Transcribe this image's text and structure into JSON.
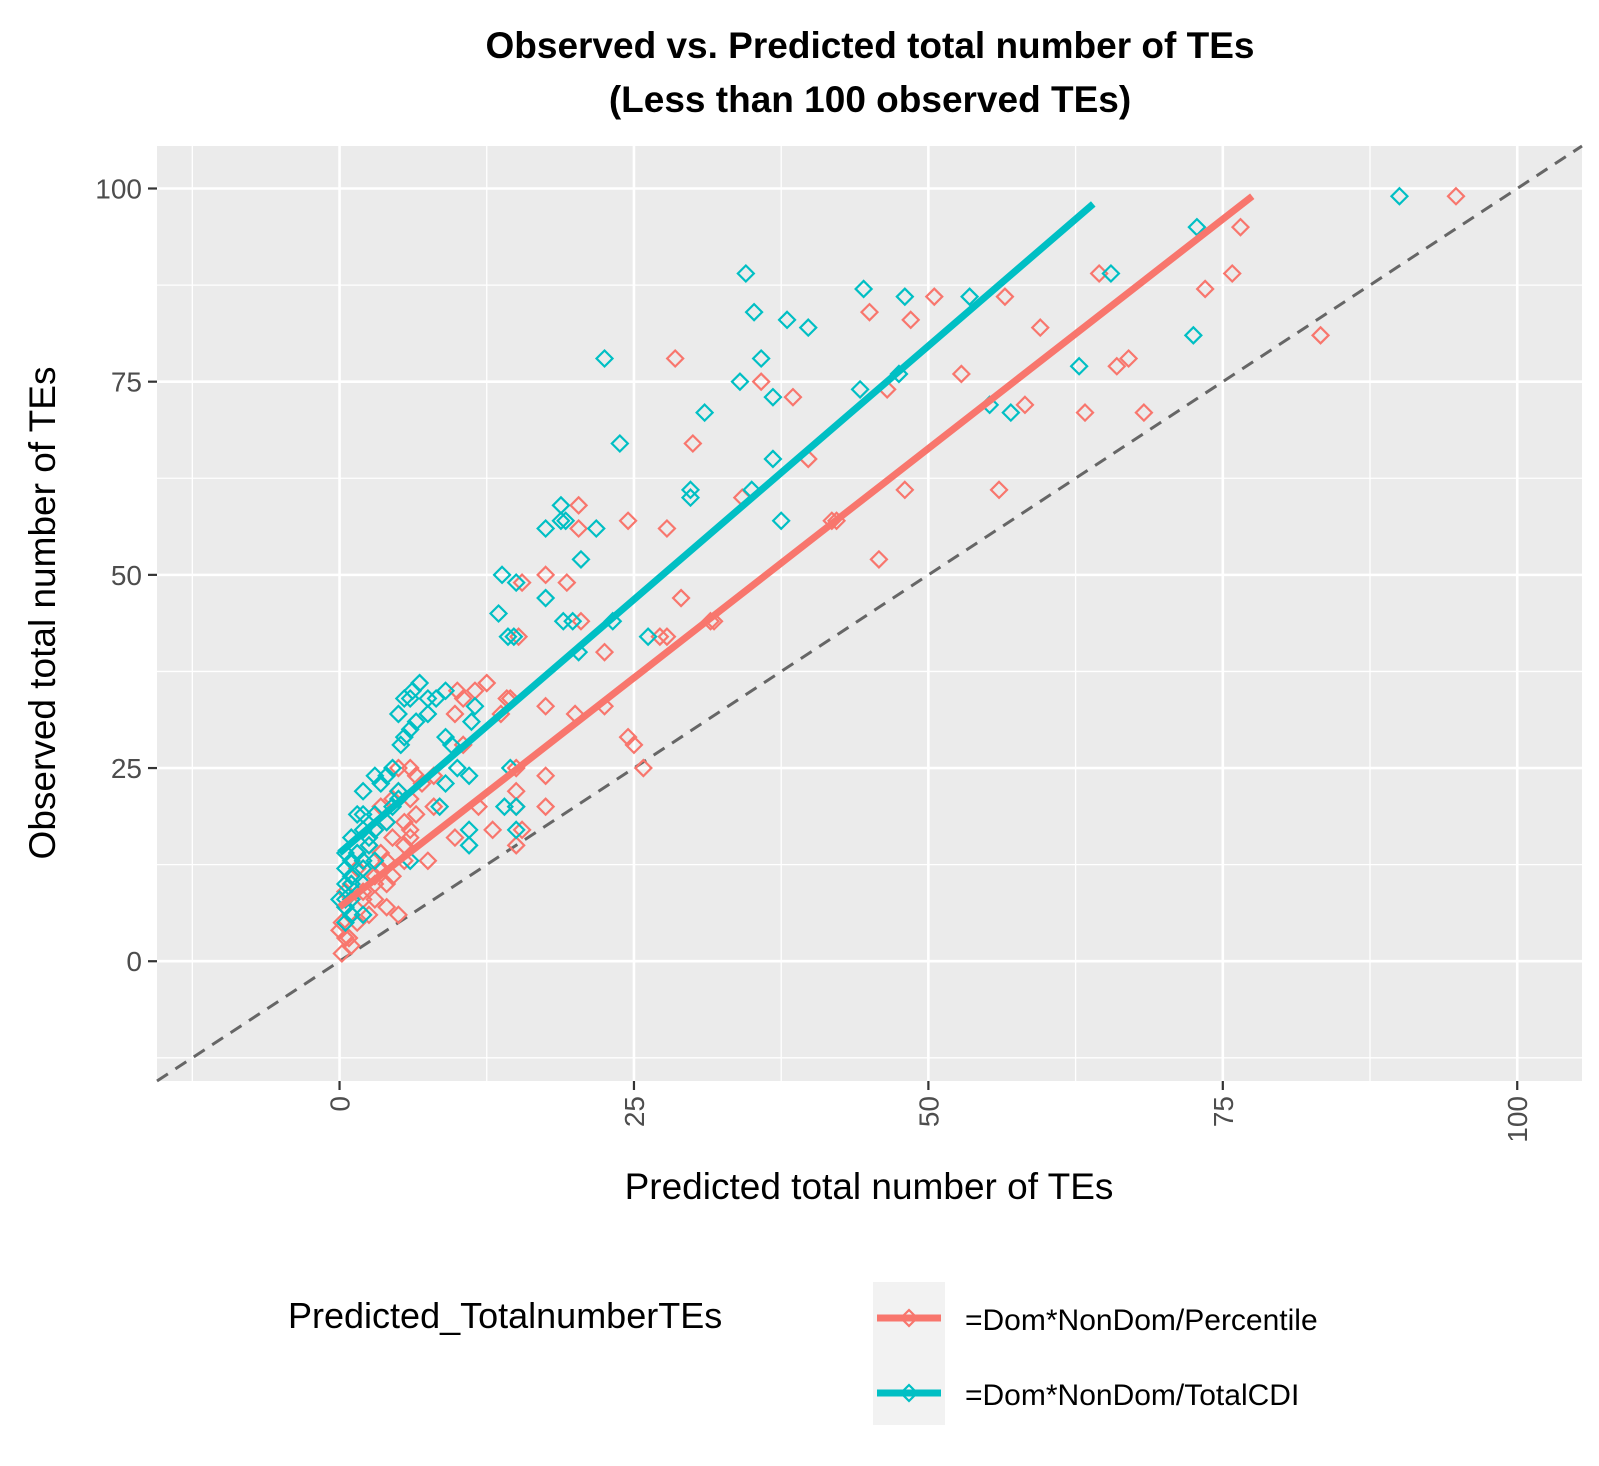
{
  "chart_data": {
    "type": "scatter",
    "title_lines": [
      "Observed vs. Predicted total number of TEs",
      "(Less than 100 observed TEs)"
    ],
    "xlabel": "Predicted total number of TEs",
    "ylabel": "Observed total number of TEs",
    "xlim": [
      -15.5,
      105.5
    ],
    "ylim": [
      -15.5,
      105.5
    ],
    "x_ticks": [
      0,
      25,
      50,
      75,
      100
    ],
    "y_ticks": [
      0,
      25,
      50,
      75,
      100
    ],
    "x_tick_labels": [
      "0",
      "25",
      "50",
      "75",
      "100"
    ],
    "y_tick_labels": [
      "0",
      "25",
      "50",
      "75",
      "100"
    ],
    "x_tick_label_rotation": "vertical",
    "grid": true,
    "reference_line": {
      "style": "dashed",
      "color": "#666666",
      "slope": 1,
      "intercept": 0
    },
    "legend": {
      "title": "Predicted_TotalnumberTEs",
      "placement": "bottom",
      "entries": [
        "=Dom*NonDom/Percentile",
        "=Dom*NonDom/TotalCDI"
      ]
    },
    "series": [
      {
        "name": "=Dom*NonDom/Percentile",
        "color": "#F8766D",
        "marker": "diamond-open",
        "fit_line": {
          "x": [
            0,
            77.5
          ],
          "y": [
            7,
            99
          ]
        },
        "points": [
          [
            94.8,
            99
          ],
          [
            76.5,
            95
          ],
          [
            75.8,
            89
          ],
          [
            64.5,
            89
          ],
          [
            73.5,
            87
          ],
          [
            50.5,
            86
          ],
          [
            56.5,
            86
          ],
          [
            45,
            84
          ],
          [
            48.5,
            83
          ],
          [
            59.5,
            82
          ],
          [
            83.3,
            81
          ],
          [
            28.5,
            78
          ],
          [
            67,
            78
          ],
          [
            66,
            77
          ],
          [
            52.8,
            76
          ],
          [
            35.8,
            75
          ],
          [
            46.5,
            74
          ],
          [
            38.5,
            73
          ],
          [
            63.3,
            71
          ],
          [
            68.3,
            71
          ],
          [
            58.2,
            72
          ],
          [
            30,
            67
          ],
          [
            39.8,
            65
          ],
          [
            34.2,
            60
          ],
          [
            56,
            61
          ],
          [
            48,
            61
          ],
          [
            20.3,
            59
          ],
          [
            20.3,
            56
          ],
          [
            24.5,
            57
          ],
          [
            27.8,
            56
          ],
          [
            41.8,
            57
          ],
          [
            42.2,
            57
          ],
          [
            45.8,
            52
          ],
          [
            15.5,
            49
          ],
          [
            19.3,
            49
          ],
          [
            17.5,
            50
          ],
          [
            29,
            47
          ],
          [
            20.5,
            44
          ],
          [
            31.5,
            44
          ],
          [
            31.8,
            44
          ],
          [
            15.2,
            42
          ],
          [
            27.2,
            42
          ],
          [
            27.8,
            42
          ],
          [
            22.5,
            40
          ],
          [
            12.5,
            36
          ],
          [
            10,
            35
          ],
          [
            11.5,
            35
          ],
          [
            10.5,
            34
          ],
          [
            14.2,
            34
          ],
          [
            14.5,
            34
          ],
          [
            9.8,
            32
          ],
          [
            13.7,
            32
          ],
          [
            17.5,
            33
          ],
          [
            22.5,
            33
          ],
          [
            20,
            32
          ],
          [
            24.5,
            29
          ],
          [
            25,
            28
          ],
          [
            10.5,
            28
          ],
          [
            25.8,
            25
          ],
          [
            15,
            25
          ],
          [
            17.5,
            24
          ],
          [
            11.8,
            20
          ],
          [
            17.5,
            20
          ],
          [
            13,
            17
          ],
          [
            15,
            15
          ],
          [
            15,
            22
          ],
          [
            15.5,
            17
          ],
          [
            15,
            20
          ],
          [
            9.8,
            16
          ],
          [
            8,
            24
          ],
          [
            6.5,
            24
          ],
          [
            7,
            23
          ],
          [
            6,
            21
          ],
          [
            5,
            22
          ],
          [
            4.5,
            21
          ],
          [
            8,
            20
          ],
          [
            3.5,
            20
          ],
          [
            5.5,
            18
          ],
          [
            6,
            17
          ],
          [
            6.5,
            19
          ],
          [
            4,
            18
          ],
          [
            3,
            17
          ],
          [
            3.5,
            14
          ],
          [
            5.5,
            15
          ],
          [
            6,
            16
          ],
          [
            4.5,
            16
          ],
          [
            2.5,
            15
          ],
          [
            2,
            13
          ],
          [
            4,
            13
          ],
          [
            3.5,
            12
          ],
          [
            5.5,
            13
          ],
          [
            7.5,
            13
          ],
          [
            1.5,
            12
          ],
          [
            2,
            12
          ],
          [
            3,
            11
          ],
          [
            1,
            10
          ],
          [
            2,
            9
          ],
          [
            3,
            10
          ],
          [
            0.5,
            9
          ],
          [
            1,
            8
          ],
          [
            2,
            8
          ],
          [
            3,
            8
          ],
          [
            4,
            7
          ],
          [
            5,
            6
          ],
          [
            0.5,
            7
          ],
          [
            1,
            6
          ],
          [
            0.2,
            5
          ],
          [
            0,
            4
          ],
          [
            0.5,
            3
          ],
          [
            1,
            2
          ],
          [
            0.2,
            1
          ],
          [
            0.8,
            3
          ],
          [
            1.5,
            5
          ],
          [
            2.5,
            6
          ],
          [
            4,
            10
          ],
          [
            4.5,
            11
          ],
          [
            5,
            25
          ],
          [
            6,
            25
          ]
        ]
      },
      {
        "name": "=Dom*NonDom/TotalCDI",
        "color": "#00BFC4",
        "marker": "diamond-open",
        "fit_line": {
          "x": [
            0,
            64
          ],
          "y": [
            14,
            98
          ]
        },
        "points": [
          [
            90,
            99
          ],
          [
            72.8,
            95
          ],
          [
            34.5,
            89
          ],
          [
            65.5,
            89
          ],
          [
            44.5,
            87
          ],
          [
            48,
            86
          ],
          [
            53.5,
            86
          ],
          [
            35.2,
            84
          ],
          [
            38,
            83
          ],
          [
            39.8,
            82
          ],
          [
            72.5,
            81
          ],
          [
            22.5,
            78
          ],
          [
            35.8,
            78
          ],
          [
            62.8,
            77
          ],
          [
            34,
            75
          ],
          [
            44.2,
            74
          ],
          [
            47.5,
            76
          ],
          [
            36.8,
            73
          ],
          [
            55.2,
            72
          ],
          [
            57,
            71
          ],
          [
            31,
            71
          ],
          [
            23.8,
            67
          ],
          [
            36.8,
            65
          ],
          [
            35,
            61
          ],
          [
            29.8,
            61
          ],
          [
            29.8,
            60
          ],
          [
            18.8,
            59
          ],
          [
            18.8,
            57
          ],
          [
            19.2,
            57
          ],
          [
            17.5,
            56
          ],
          [
            21.8,
            56
          ],
          [
            37.5,
            57
          ],
          [
            20.5,
            52
          ],
          [
            13.8,
            50
          ],
          [
            15,
            49
          ],
          [
            17.5,
            47
          ],
          [
            13.5,
            45
          ],
          [
            19,
            44
          ],
          [
            19.8,
            44
          ],
          [
            23.2,
            44
          ],
          [
            14.3,
            42
          ],
          [
            14.8,
            42
          ],
          [
            26.2,
            42
          ],
          [
            20.3,
            40
          ],
          [
            6.8,
            36
          ],
          [
            6.2,
            35
          ],
          [
            5.5,
            34
          ],
          [
            6,
            34
          ],
          [
            8.2,
            34
          ],
          [
            9,
            35
          ],
          [
            7.5,
            34
          ],
          [
            5,
            32
          ],
          [
            7.5,
            32
          ],
          [
            11.5,
            33
          ],
          [
            11.2,
            31
          ],
          [
            6.5,
            31
          ],
          [
            5.5,
            29
          ],
          [
            5.2,
            28
          ],
          [
            9,
            29
          ],
          [
            9.5,
            28
          ],
          [
            6,
            30
          ],
          [
            14.5,
            25
          ],
          [
            11,
            24
          ],
          [
            9,
            23
          ],
          [
            10,
            25
          ],
          [
            4.5,
            25
          ],
          [
            3,
            24
          ],
          [
            4,
            24
          ],
          [
            3.5,
            23
          ],
          [
            2,
            22
          ],
          [
            5,
            22
          ],
          [
            5,
            21
          ],
          [
            4.5,
            20
          ],
          [
            8.5,
            20
          ],
          [
            2,
            19
          ],
          [
            1.5,
            19
          ],
          [
            3,
            19
          ],
          [
            4,
            18
          ],
          [
            2,
            17
          ],
          [
            3,
            17
          ],
          [
            1,
            16
          ],
          [
            2.5,
            16
          ],
          [
            11,
            15
          ],
          [
            11,
            17
          ],
          [
            14,
            20
          ],
          [
            15,
            17
          ],
          [
            15,
            20
          ],
          [
            0.5,
            14
          ],
          [
            1.5,
            14
          ],
          [
            2.5,
            15
          ],
          [
            1,
            13
          ],
          [
            2,
            13
          ],
          [
            3,
            13
          ],
          [
            0.5,
            12
          ],
          [
            1,
            11
          ],
          [
            2,
            12
          ],
          [
            0.5,
            10
          ],
          [
            1,
            10
          ],
          [
            2,
            10
          ],
          [
            0,
            8
          ],
          [
            0.5,
            8
          ],
          [
            1,
            8
          ],
          [
            0.5,
            7
          ],
          [
            1,
            6
          ],
          [
            0.5,
            5
          ],
          [
            2,
            6
          ],
          [
            6,
            13
          ]
        ]
      }
    ]
  }
}
